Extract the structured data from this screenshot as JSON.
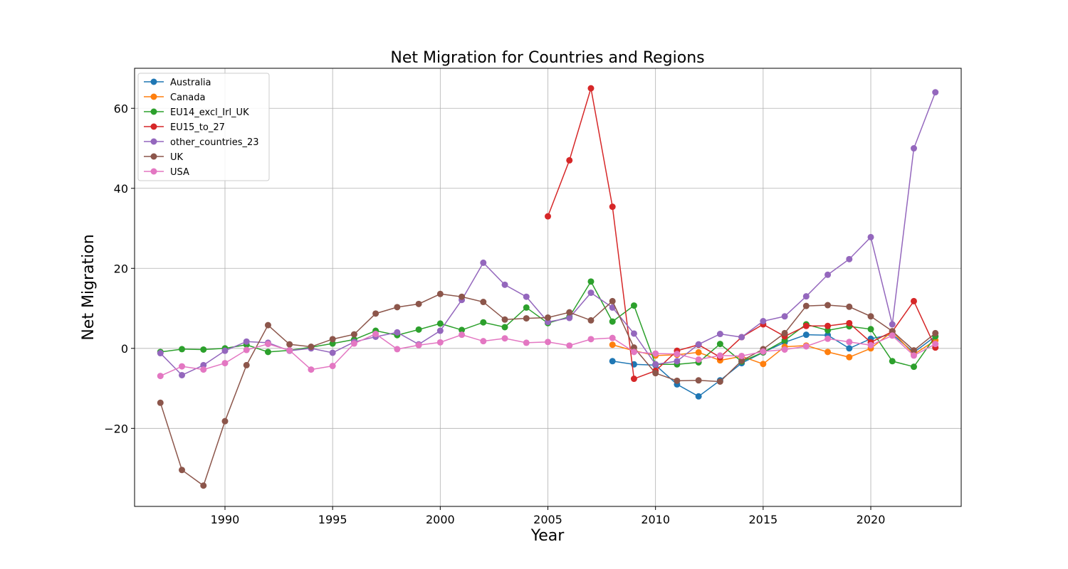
{
  "chart_data": {
    "type": "line",
    "title": "Net Migration for  Countries and Regions",
    "xlabel": "Year",
    "ylabel": "Net Migration",
    "xlim": [
      1985.8,
      2024.2
    ],
    "ylim": [
      -39.5,
      70
    ],
    "xticks": [
      1990,
      1995,
      2000,
      2005,
      2010,
      2015,
      2020
    ],
    "yticks": [
      -20,
      0,
      20,
      40,
      60
    ],
    "grid": true,
    "legend_position": "top-left",
    "x": [
      1987,
      1988,
      1989,
      1990,
      1991,
      1992,
      1993,
      1994,
      1995,
      1996,
      1997,
      1998,
      1999,
      2000,
      2001,
      2002,
      2003,
      2004,
      2005,
      2006,
      2007,
      2008,
      2009,
      2010,
      2011,
      2012,
      2013,
      2014,
      2015,
      2016,
      2017,
      2018,
      2019,
      2020,
      2021,
      2022,
      2023
    ],
    "series": [
      {
        "name": "Australia",
        "color": "#1f77b4",
        "values": [
          null,
          null,
          null,
          null,
          null,
          null,
          null,
          null,
          null,
          null,
          null,
          null,
          null,
          null,
          null,
          null,
          null,
          null,
          null,
          null,
          null,
          -3.2,
          -4.0,
          -4.2,
          -9.0,
          -12.0,
          -8.0,
          -3.7,
          -1.0,
          1.5,
          3.4,
          3.3,
          0.0,
          2.4,
          3.5,
          -1.0,
          3.0
        ]
      },
      {
        "name": "Canada",
        "color": "#ff7f0e",
        "values": [
          null,
          null,
          null,
          null,
          null,
          null,
          null,
          null,
          null,
          null,
          null,
          null,
          null,
          null,
          null,
          null,
          null,
          null,
          null,
          null,
          null,
          0.9,
          -0.6,
          -1.8,
          -1.6,
          -1.0,
          -3.0,
          -2.0,
          -3.9,
          0.4,
          0.7,
          -0.9,
          -2.2,
          0.0,
          4.2,
          -1.5,
          2.0
        ]
      },
      {
        "name": "EU14_excl_Irl_UK",
        "color": "#2ca02c",
        "values": [
          -0.9,
          -0.2,
          -0.3,
          0.0,
          0.9,
          -0.9,
          -0.5,
          0.3,
          1.2,
          2.2,
          4.4,
          3.3,
          4.7,
          6.2,
          4.6,
          6.5,
          5.3,
          10.2,
          6.3,
          7.9,
          16.7,
          6.7,
          10.7,
          -4.0,
          -4.0,
          -3.5,
          1.1,
          -3.3,
          -1.0,
          2.0,
          6.0,
          4.5,
          5.5,
          4.8,
          -3.2,
          -4.6,
          3.0
        ]
      },
      {
        "name": "EU15_to_27",
        "color": "#d62728",
        "values": [
          null,
          null,
          null,
          null,
          null,
          null,
          null,
          null,
          null,
          null,
          null,
          null,
          null,
          null,
          null,
          null,
          null,
          null,
          33.0,
          47.0,
          65.0,
          35.4,
          -7.6,
          -5.6,
          -0.6,
          0.9,
          -2.2,
          2.8,
          6.0,
          3.0,
          5.6,
          5.6,
          6.3,
          1.5,
          4.2,
          11.8,
          0.2
        ]
      },
      {
        "name": "other_countries_23",
        "color": "#9467bd",
        "values": [
          -1.2,
          -6.7,
          -4.2,
          -0.6,
          1.7,
          1.4,
          -0.6,
          0.0,
          -1.1,
          1.6,
          2.9,
          4.0,
          1.0,
          4.4,
          12.1,
          21.4,
          15.9,
          12.9,
          6.6,
          7.6,
          13.9,
          10.2,
          3.7,
          -4.0,
          -3.2,
          1.0,
          3.6,
          2.8,
          6.8,
          8.0,
          13.0,
          18.4,
          22.3,
          27.8,
          6.0,
          50.0,
          64.0
        ]
      },
      {
        "name": "UK",
        "color": "#8c564b",
        "values": [
          -13.6,
          -30.4,
          -34.3,
          -18.2,
          -4.2,
          5.8,
          1.0,
          0.4,
          2.3,
          3.5,
          8.7,
          10.3,
          11.1,
          13.6,
          12.9,
          11.6,
          7.2,
          7.5,
          7.7,
          9.0,
          7.0,
          11.8,
          0.2,
          -6.2,
          -8.1,
          -8.0,
          -8.3,
          -3.1,
          -0.2,
          3.8,
          10.6,
          10.8,
          10.4,
          8.0,
          4.3,
          -0.5,
          3.8
        ]
      },
      {
        "name": "USA",
        "color": "#e377c2",
        "values": [
          -6.9,
          -4.5,
          -5.3,
          -3.7,
          -0.4,
          1.1,
          -0.5,
          -5.3,
          -4.4,
          1.2,
          3.6,
          -0.2,
          0.8,
          1.5,
          3.4,
          1.8,
          2.5,
          1.4,
          1.6,
          0.7,
          2.3,
          2.6,
          -0.9,
          -1.3,
          -1.4,
          -2.8,
          -1.8,
          -1.9,
          -0.8,
          -0.3,
          0.5,
          2.4,
          1.6,
          0.8,
          3.2,
          -1.8,
          1.1
        ]
      }
    ]
  }
}
